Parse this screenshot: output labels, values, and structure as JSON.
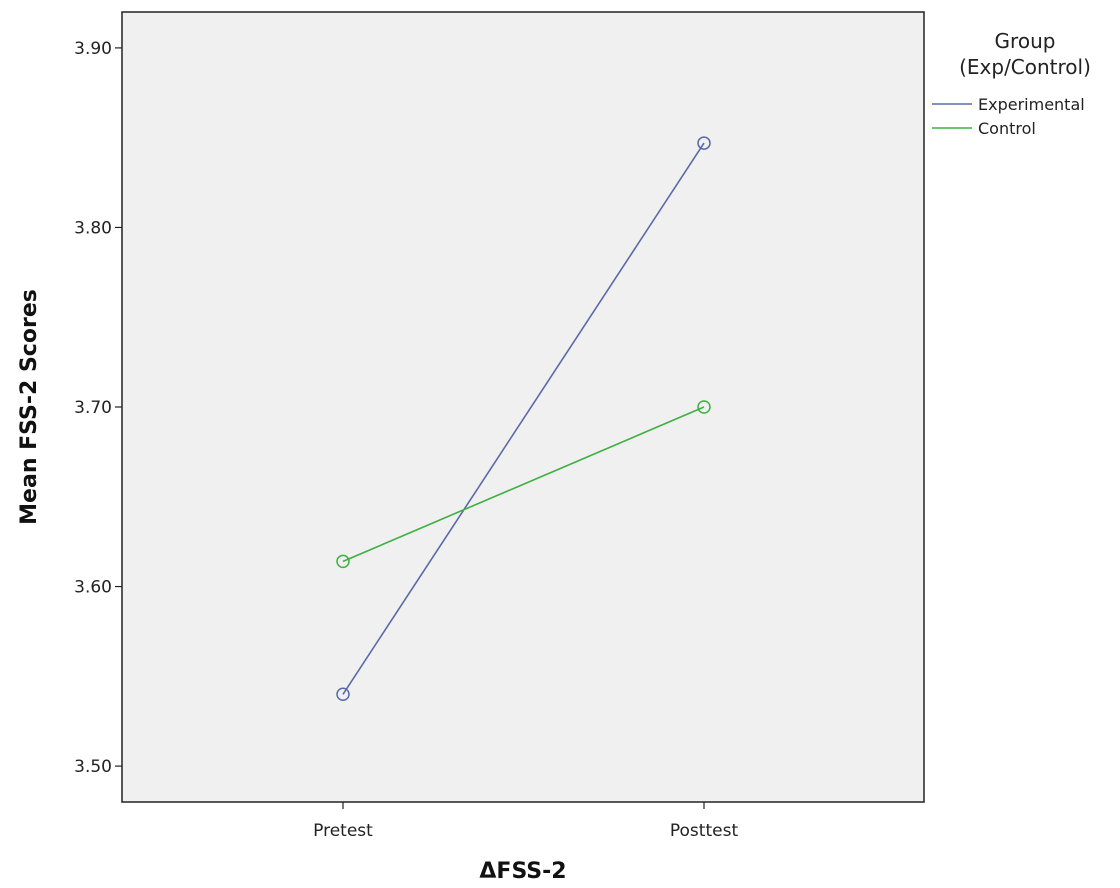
{
  "chart_data": {
    "type": "line",
    "title": "",
    "xlabel": "ΔFSS-2",
    "ylabel": "Mean FSS-2 Scores",
    "categories": [
      "Pretest",
      "Posttest"
    ],
    "ylim": [
      3.48,
      3.92
    ],
    "yticks": [
      3.5,
      3.6,
      3.7,
      3.8,
      3.9
    ],
    "ytick_labels": [
      "3.50",
      "3.60",
      "3.70",
      "3.80",
      "3.90"
    ],
    "grid": false,
    "legend": {
      "title_line1": "Group",
      "title_line2": "(Exp/Control)",
      "position": "right"
    },
    "series": [
      {
        "name": "Experimental",
        "values": [
          3.54,
          3.847
        ],
        "color": "#5a6aa8"
      },
      {
        "name": "Control",
        "values": [
          3.614,
          3.7
        ],
        "color": "#3db040"
      }
    ]
  }
}
